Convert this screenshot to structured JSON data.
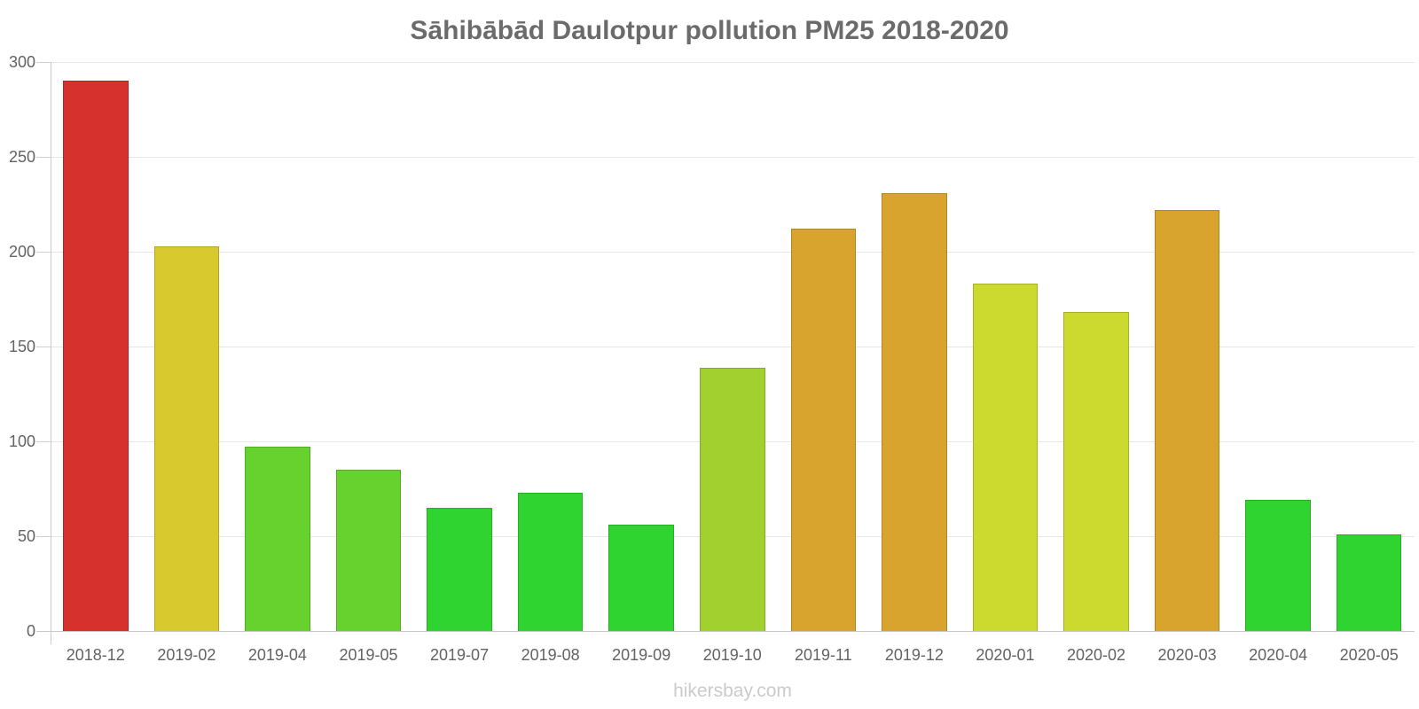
{
  "chart_data": {
    "type": "bar",
    "title": "Sāhibābād Daulotpur pollution PM25 2018-2020",
    "xlabel": "",
    "ylabel": "",
    "categories": [
      "2018-12",
      "2019-02",
      "2019-04",
      "2019-05",
      "2019-07",
      "2019-08",
      "2019-09",
      "2019-10",
      "2019-11",
      "2019-12",
      "2020-01",
      "2020-02",
      "2020-03",
      "2020-04",
      "2020-05"
    ],
    "values": [
      290,
      203,
      97,
      85,
      65,
      73,
      56,
      139,
      212,
      231,
      183,
      168,
      222,
      69,
      51
    ],
    "bar_colors": [
      "#d7312e",
      "#d8c92e",
      "#67d22e",
      "#67d22e",
      "#30d430",
      "#30d430",
      "#30d430",
      "#a2d12f",
      "#d8a42e",
      "#d8a42e",
      "#ccd92e",
      "#ccd92e",
      "#d8a42e",
      "#30d430",
      "#30d430"
    ],
    "ylim": [
      0,
      300
    ],
    "yticks": [
      0,
      50,
      100,
      150,
      200,
      250,
      300
    ],
    "grid": "horizontal",
    "legend": "none"
  },
  "footer": {
    "text": "hikersbay.com"
  },
  "style_colors": {
    "title_text": "#6b6b6b",
    "axis_label_text": "#636363",
    "gridline": "#e7e7e7",
    "axis_line": "#c9c9c9",
    "watermark_text": "#cbcbcb",
    "background": "#ffffff"
  }
}
